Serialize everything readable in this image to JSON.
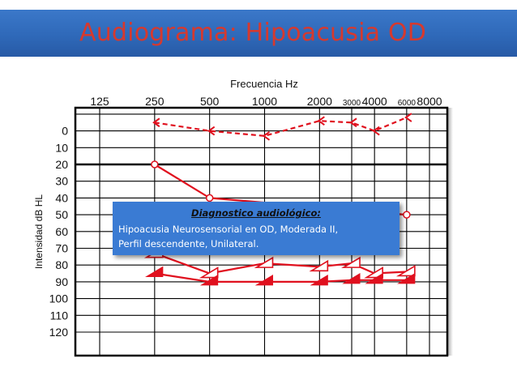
{
  "slide": {
    "title": "Audiograma: Hipoacusia OD"
  },
  "annotation": {
    "heading": "Diagnostico audiológico:",
    "line1": "Hipoacusia Neurosensorial en OD, Moderada II,",
    "line2": "Perfil descendente, Unilateral."
  },
  "colors": {
    "title_bar": "#2f69b9",
    "title_text": "#d6392e",
    "series": "#e0101e",
    "annotation_box": "#3a7bd3"
  },
  "chart_data": {
    "type": "line",
    "title": "",
    "xlabel": "Frecuencia Hz",
    "ylabel": "Intensidad dB HL",
    "x_ticks": [
      {
        "label": "125",
        "hz": 125
      },
      {
        "label": "250",
        "hz": 250
      },
      {
        "label": "500",
        "hz": 500
      },
      {
        "label": "1000",
        "hz": 1000
      },
      {
        "label": "2000",
        "hz": 2000
      },
      {
        "label": "3000",
        "hz": 3000
      },
      {
        "label": "4000",
        "hz": 4000
      },
      {
        "label": "6000",
        "hz": 6000
      },
      {
        "label": "8000",
        "hz": 8000
      }
    ],
    "x_scale": "log",
    "y_ticks": [
      0,
      10,
      20,
      30,
      40,
      50,
      60,
      70,
      80,
      90,
      100,
      110,
      120
    ],
    "ylim": [
      -10,
      130
    ],
    "y_inverted": true,
    "grid": true,
    "series": [
      {
        "marker": "arrow-left",
        "line": "dashed",
        "points": [
          {
            "x": 250,
            "y": -5
          },
          {
            "x": 500,
            "y": 0
          },
          {
            "x": 1000,
            "y": 3
          },
          {
            "x": 2000,
            "y": -6
          },
          {
            "x": 3000,
            "y": -5
          },
          {
            "x": 4000,
            "y": 0
          },
          {
            "x": 6000,
            "y": -8
          }
        ]
      },
      {
        "marker": "circle",
        "line": "solid",
        "points": [
          {
            "x": 250,
            "y": 20
          },
          {
            "x": 500,
            "y": 40
          },
          {
            "x": 6000,
            "y": 50
          }
        ]
      },
      {
        "marker": "triangle-open",
        "line": "solid",
        "points": [
          {
            "x": 250,
            "y": 73
          },
          {
            "x": 500,
            "y": 85
          },
          {
            "x": 1000,
            "y": 79
          },
          {
            "x": 2000,
            "y": 81
          },
          {
            "x": 3000,
            "y": 79
          },
          {
            "x": 4000,
            "y": 85
          },
          {
            "x": 6000,
            "y": 84
          }
        ]
      },
      {
        "marker": "triangle-filled",
        "line": "solid",
        "points": [
          {
            "x": 250,
            "y": 85
          },
          {
            "x": 500,
            "y": 90
          },
          {
            "x": 1000,
            "y": 90
          },
          {
            "x": 2000,
            "y": 90
          },
          {
            "x": 3000,
            "y": 89
          },
          {
            "x": 4000,
            "y": 89
          },
          {
            "x": 6000,
            "y": 89
          }
        ]
      }
    ]
  }
}
